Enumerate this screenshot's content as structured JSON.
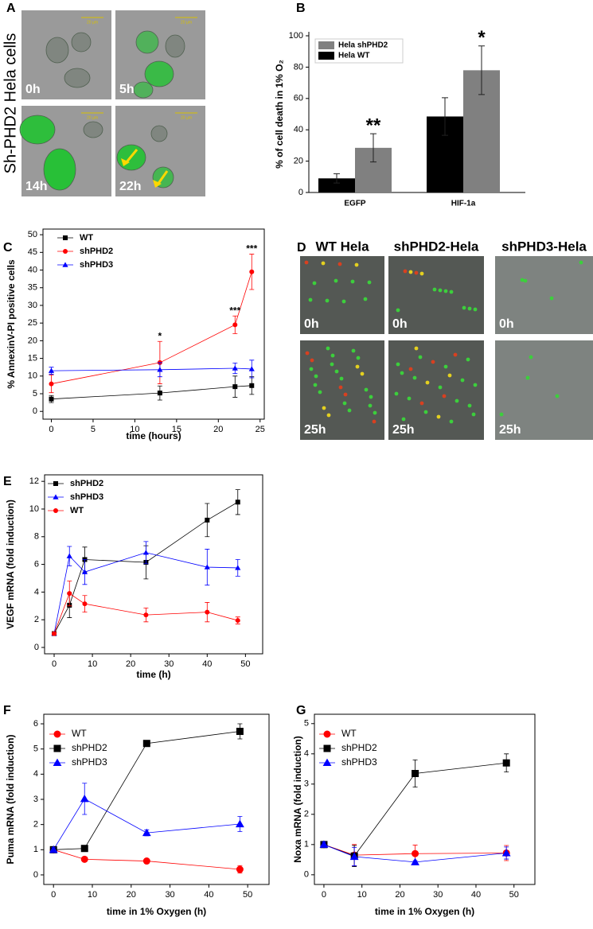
{
  "panel_labels": [
    "A",
    "B",
    "C",
    "D",
    "E",
    "F",
    "G"
  ],
  "image_panels": {
    "A": {
      "row_label": "Sh-PHD2 Hela cells",
      "tiles": [
        "0h",
        "5h",
        "14h",
        "22h"
      ],
      "scale_label": "20 µm"
    },
    "D": {
      "columns": [
        "WT Hela",
        "shPHD2-Hela",
        "shPHD3-Hela"
      ],
      "rows": [
        "0h",
        "25h"
      ]
    }
  },
  "chart_data": [
    {
      "type": "bar",
      "y_label": "% of cell death in 1% O₂",
      "categories": [
        "EGFP",
        "HIF-1a"
      ],
      "series": [
        {
          "name": "Hela WT",
          "color": "#000000",
          "values": [
            9,
            48.5
          ],
          "errors": [
            3,
            12
          ]
        },
        {
          "name": "Hela shPHD2",
          "color": "#808080",
          "values": [
            28.5,
            78
          ],
          "errors": [
            9,
            15.5
          ]
        }
      ],
      "ylim": [
        0,
        100
      ],
      "yticks": [
        0,
        20,
        40,
        60,
        80,
        100
      ],
      "annotations": [
        "**",
        "*"
      ],
      "legend": "upper left"
    },
    {
      "type": "line",
      "x_label": "time (hours)",
      "y_label": "% AnnexinV-PI positive cells",
      "x": [
        0,
        13,
        22,
        24
      ],
      "series": [
        {
          "name": "WT",
          "color": "#000000",
          "marker": "square",
          "values": [
            3.5,
            5.2,
            7,
            7.3
          ],
          "errors": [
            1,
            2,
            3,
            2.5
          ]
        },
        {
          "name": "shPHD2",
          "color": "#ff0000",
          "marker": "circle",
          "values": [
            7.8,
            13.8,
            24.5,
            39.5
          ],
          "errors": [
            2.5,
            6,
            2.5,
            5
          ]
        },
        {
          "name": "shPHD3",
          "color": "#0000ff",
          "marker": "triangle",
          "values": [
            11.5,
            11.8,
            12.2,
            12
          ],
          "errors": [
            1,
            2,
            1.5,
            2.5
          ]
        }
      ],
      "xlim": [
        -1,
        25.5
      ],
      "xticks": [
        0,
        5,
        10,
        15,
        20,
        25
      ],
      "ylim": [
        -2.2,
        51.6
      ],
      "yticks": [
        0,
        5,
        10,
        15,
        20,
        25,
        30,
        35,
        40,
        45,
        50
      ],
      "annotations": [
        "*",
        "***",
        "***"
      ],
      "legend": "upper left"
    },
    {
      "type": "line",
      "x_label": "time (h)",
      "y_label": "VEGF mRNA (fold induction)",
      "x": [
        0,
        4,
        8,
        24,
        40,
        48
      ],
      "series": [
        {
          "name": "shPHD2",
          "color": "#000000",
          "marker": "square",
          "values": [
            1,
            3.05,
            6.35,
            6.15,
            9.2,
            10.5
          ],
          "errors": [
            0.1,
            0.9,
            0.9,
            1.2,
            1.2,
            0.9
          ]
        },
        {
          "name": "shPHD3",
          "color": "#0000ff",
          "marker": "triangle",
          "values": [
            1,
            6.6,
            5.45,
            6.85,
            5.8,
            5.75
          ],
          "errors": [
            0.1,
            0.7,
            0.9,
            0.8,
            1.3,
            0.6
          ]
        },
        {
          "name": "WT",
          "color": "#ff0000",
          "marker": "circle",
          "values": [
            1,
            3.9,
            3.15,
            2.35,
            2.55,
            1.95
          ],
          "errors": [
            0.1,
            0.9,
            0.6,
            0.5,
            0.7,
            0.25
          ]
        }
      ],
      "xlim": [
        -2.5,
        54.5
      ],
      "xticks": [
        0,
        10,
        20,
        30,
        40,
        50
      ],
      "ylim": [
        -0.46,
        12.47
      ],
      "yticks": [
        0,
        2,
        4,
        6,
        8,
        10,
        12
      ],
      "legend": "upper left"
    },
    {
      "type": "line",
      "x_label": "time in 1% Oxygen (h)",
      "y_label": "Puma mRNA (fold induction)",
      "x": [
        0,
        8,
        24,
        48
      ],
      "series": [
        {
          "name": "WT",
          "color": "#ff0000",
          "marker": "circle",
          "values": [
            1,
            0.62,
            0.55,
            0.22
          ],
          "errors": [
            0.08,
            0.05,
            0.08,
            0.15
          ]
        },
        {
          "name": "shPHD2",
          "color": "#000000",
          "marker": "square",
          "values": [
            1,
            1.05,
            5.22,
            5.7
          ],
          "errors": [
            0.08,
            0.05,
            0.1,
            0.3
          ]
        },
        {
          "name": "shPHD3",
          "color": "#0000ff",
          "marker": "triangle",
          "values": [
            1,
            3.02,
            1.67,
            2.02
          ],
          "errors": [
            0.08,
            0.62,
            0.12,
            0.3
          ]
        }
      ],
      "xlim": [
        -2.5,
        55.5
      ],
      "xticks": [
        0,
        10,
        20,
        30,
        40,
        50
      ],
      "ylim": [
        -0.38,
        6.38
      ],
      "yticks": [
        0,
        1,
        2,
        3,
        4,
        5,
        6
      ],
      "legend": "upper left"
    },
    {
      "type": "line",
      "x_label": "time in 1% Oxygen (h)",
      "y_label": "Noxa mRNA (fold induction)",
      "x": [
        0,
        8,
        24,
        48
      ],
      "series": [
        {
          "name": "WT",
          "color": "#ff0000",
          "marker": "circle",
          "values": [
            1,
            0.65,
            0.7,
            0.72
          ],
          "errors": [
            0.08,
            0.35,
            0.28,
            0.25
          ]
        },
        {
          "name": "shPHD2",
          "color": "#000000",
          "marker": "square",
          "values": [
            1,
            0.62,
            3.35,
            3.7
          ],
          "errors": [
            0.08,
            0.35,
            0.45,
            0.3
          ]
        },
        {
          "name": "shPHD3",
          "color": "#0000ff",
          "marker": "triangle",
          "values": [
            1,
            0.6,
            0.42,
            0.72
          ],
          "errors": [
            0.08,
            0.3,
            0.05,
            0.2
          ]
        }
      ],
      "xlim": [
        -2.5,
        55.5
      ],
      "xticks": [
        0,
        10,
        20,
        30,
        40,
        50
      ],
      "ylim": [
        -0.32,
        5.31
      ],
      "yticks": [
        0,
        1,
        2,
        3,
        4,
        5
      ],
      "legend": "upper left"
    }
  ]
}
